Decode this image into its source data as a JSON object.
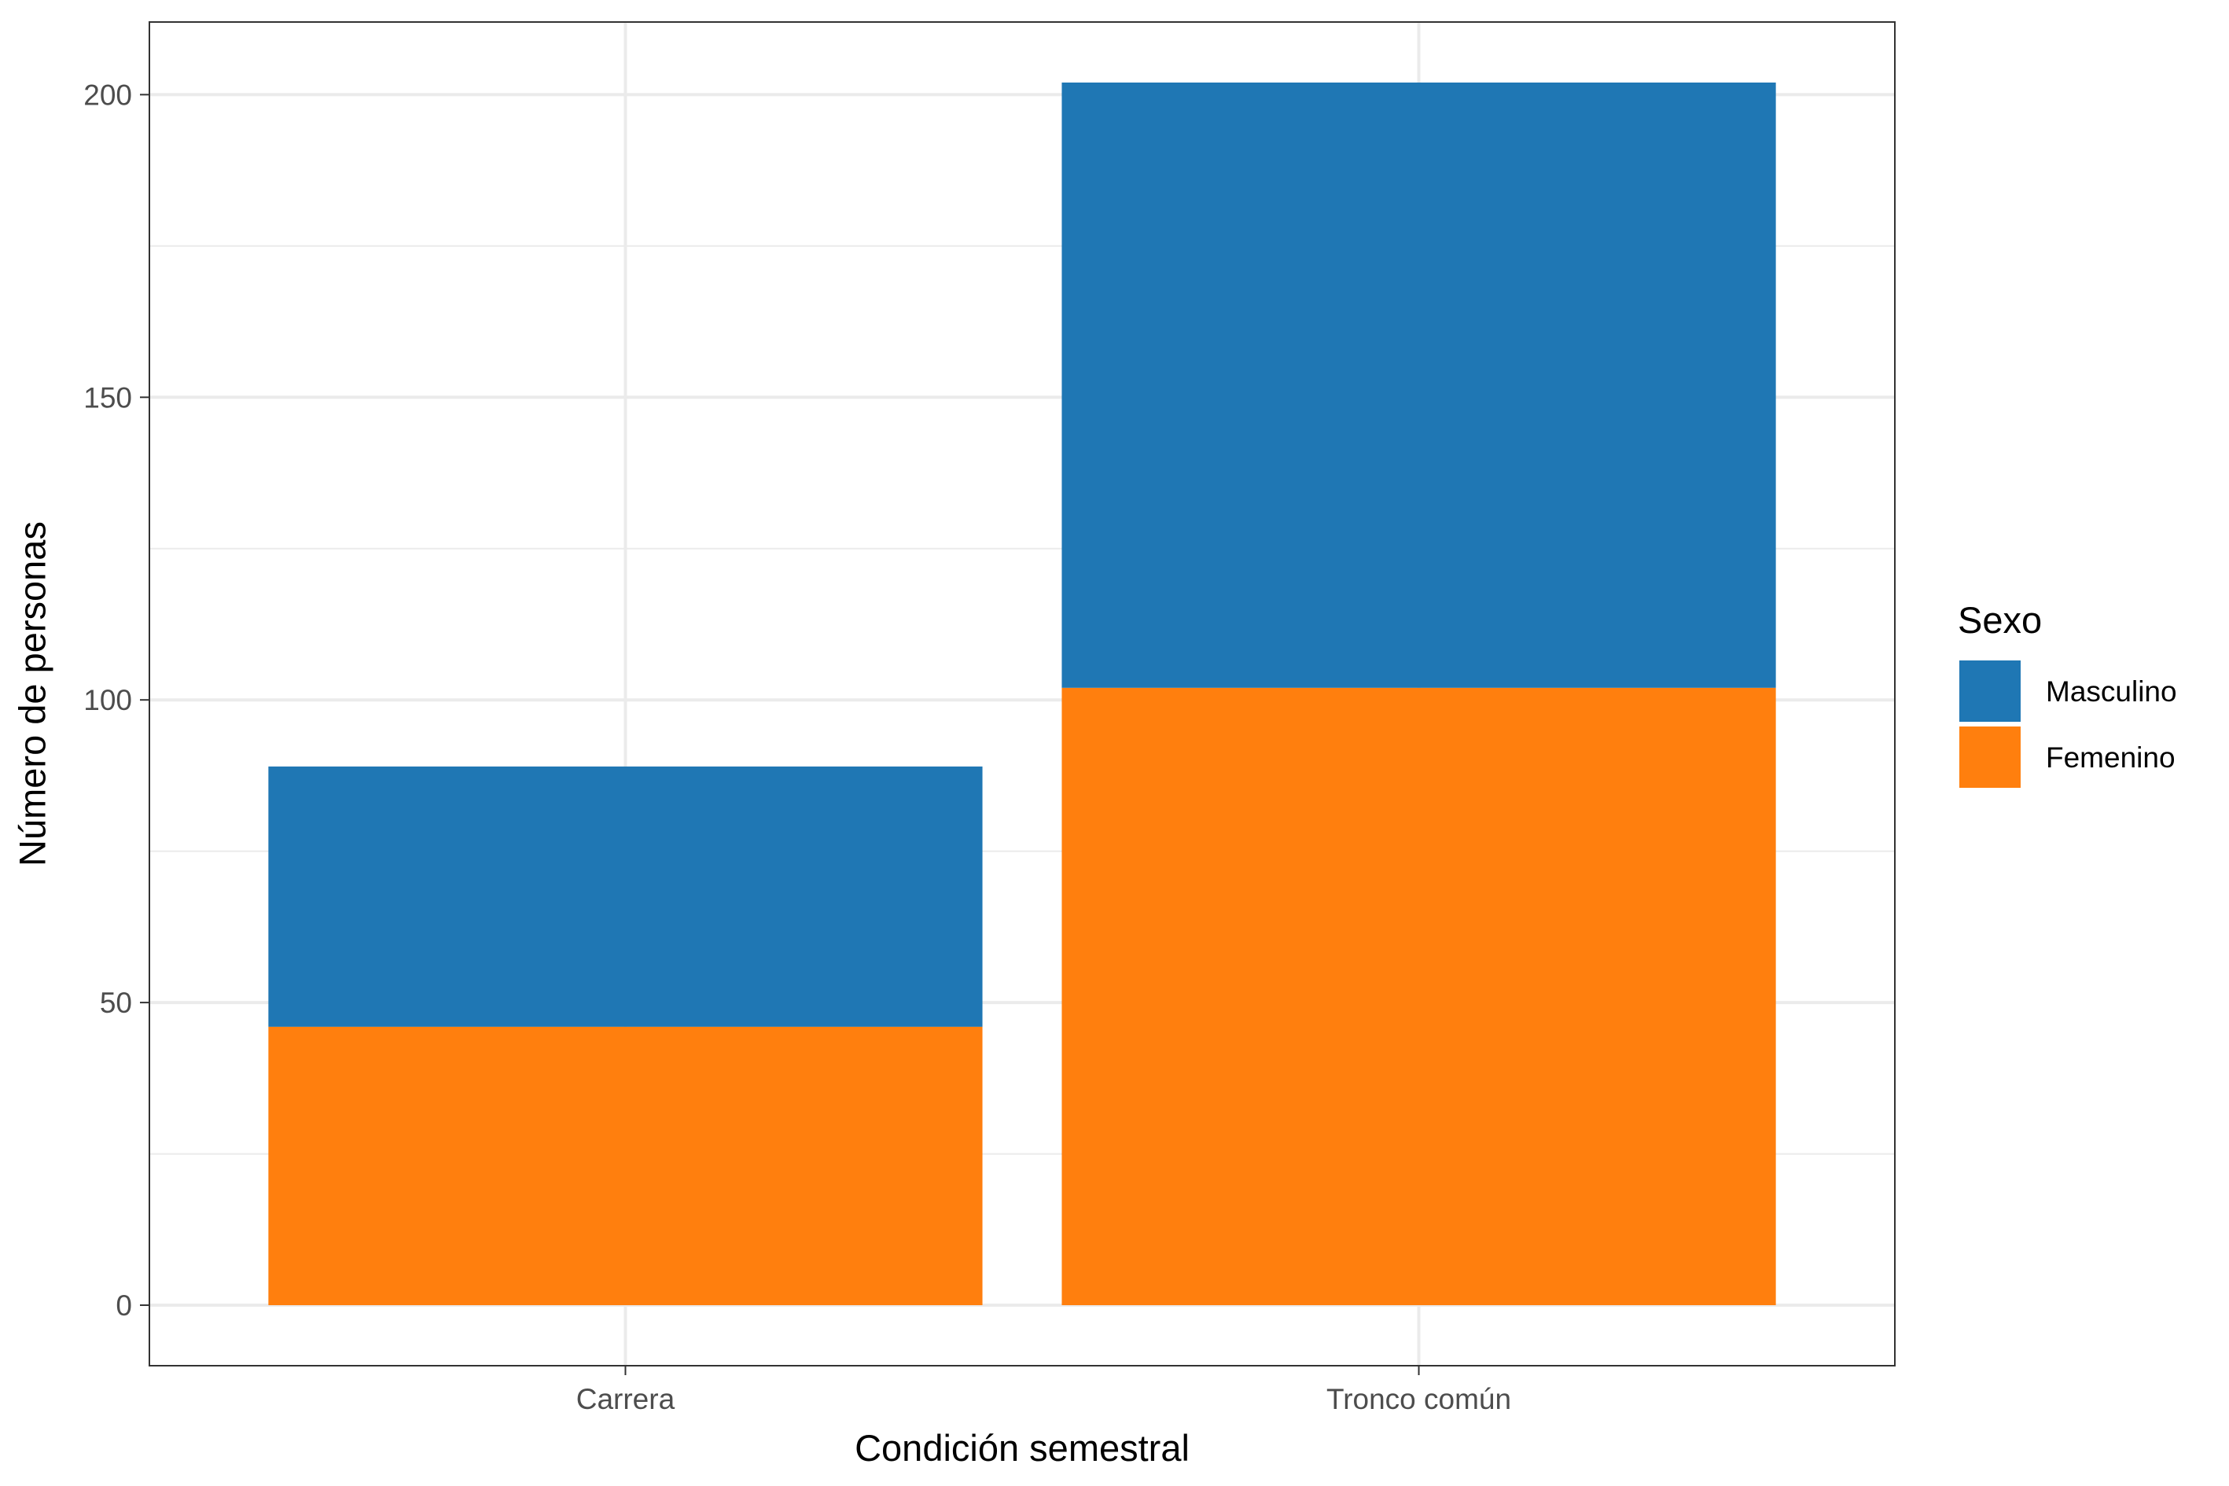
{
  "chart_data": {
    "type": "bar",
    "stacked": true,
    "title": "",
    "xlabel": "Condición semestral",
    "ylabel": "Número de personas",
    "categories": [
      "Carrera",
      "Tronco común"
    ],
    "series": [
      {
        "name": "Femenino",
        "values": [
          46,
          102
        ],
        "color": "#FF7F0E"
      },
      {
        "name": "Masculino",
        "values": [
          43,
          100
        ],
        "color": "#1F77B4"
      }
    ],
    "ylim": [
      -10,
      212
    ],
    "yticks": [
      0,
      50,
      100,
      150,
      200
    ],
    "grid": true,
    "legend": {
      "title": "Sexo",
      "placement": "right",
      "order": [
        "Masculino",
        "Femenino"
      ]
    }
  }
}
